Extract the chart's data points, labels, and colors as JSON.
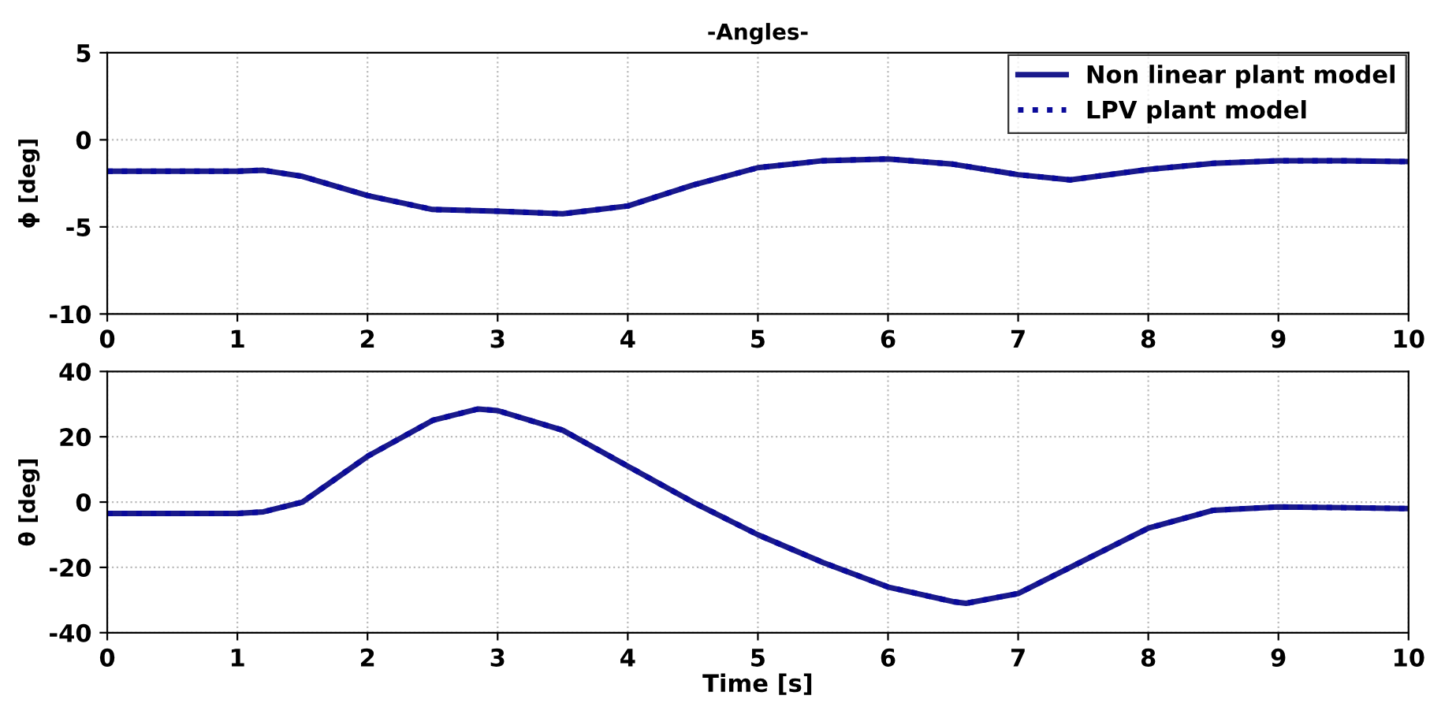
{
  "chart_data": [
    {
      "type": "line",
      "title": "-Angles-",
      "ylabel": "ϕ [deg]",
      "xlim": [
        0,
        10
      ],
      "xticks": [
        0,
        1,
        2,
        3,
        4,
        5,
        6,
        7,
        8,
        9,
        10
      ],
      "ylim": [
        -10,
        5
      ],
      "yticks": [
        -10,
        -5,
        0,
        5
      ],
      "grid": true,
      "legend": "top right",
      "x": [
        0,
        1,
        1.2,
        1.5,
        2,
        2.5,
        3,
        3.5,
        4,
        4.5,
        5,
        5.5,
        6,
        6.5,
        7,
        7.4,
        8,
        8.5,
        9,
        9.5,
        10
      ],
      "series": [
        {
          "name": "Non linear plant model",
          "color": "#1a1a8c",
          "line_style": "solid",
          "values": [
            -1.8,
            -1.8,
            -1.75,
            -2.1,
            -3.2,
            -4.0,
            -4.1,
            -4.25,
            -3.8,
            -2.6,
            -1.6,
            -1.2,
            -1.1,
            -1.4,
            -2.0,
            -2.3,
            -1.7,
            -1.35,
            -1.2,
            -1.2,
            -1.25
          ]
        },
        {
          "name": "LPV plant model",
          "color": "#0a0a9a",
          "line_style": "dotted",
          "values": [
            -1.8,
            -1.8,
            -1.75,
            -2.1,
            -3.2,
            -4.0,
            -4.1,
            -4.25,
            -3.8,
            -2.6,
            -1.6,
            -1.2,
            -1.1,
            -1.4,
            -2.0,
            -2.3,
            -1.7,
            -1.35,
            -1.2,
            -1.2,
            -1.25
          ]
        }
      ]
    },
    {
      "type": "line",
      "xlabel": "Time [s]",
      "ylabel": "θ [deg]",
      "xlim": [
        0,
        10
      ],
      "xticks": [
        0,
        1,
        2,
        3,
        4,
        5,
        6,
        7,
        8,
        9,
        10
      ],
      "ylim": [
        -40,
        40
      ],
      "yticks": [
        -40,
        -20,
        0,
        20,
        40
      ],
      "grid": true,
      "x": [
        0,
        1,
        1.2,
        1.5,
        2,
        2.5,
        2.85,
        3,
        3.5,
        4,
        4.5,
        5,
        5.5,
        6,
        6.5,
        6.6,
        7,
        7.5,
        8,
        8.5,
        9,
        9.5,
        10
      ],
      "series": [
        {
          "color": "#1a1a8c",
          "line_style": "solid",
          "values": [
            -3.5,
            -3.5,
            -3,
            0,
            14,
            25,
            28.5,
            28,
            22,
            11,
            0,
            -10,
            -18.5,
            -26,
            -30.5,
            -31,
            -28,
            -18,
            -8,
            -2.5,
            -1.5,
            -1.7,
            -2
          ]
        },
        {
          "color": "#0a0a9a",
          "line_style": "dotted",
          "values": [
            -3.5,
            -3.5,
            -3,
            0,
            14,
            25,
            28.5,
            28,
            22,
            11,
            0,
            -10,
            -18.5,
            -26,
            -30.5,
            -31,
            -28,
            -18,
            -8,
            -2.5,
            -1.5,
            -1.7,
            -2
          ]
        }
      ]
    }
  ]
}
